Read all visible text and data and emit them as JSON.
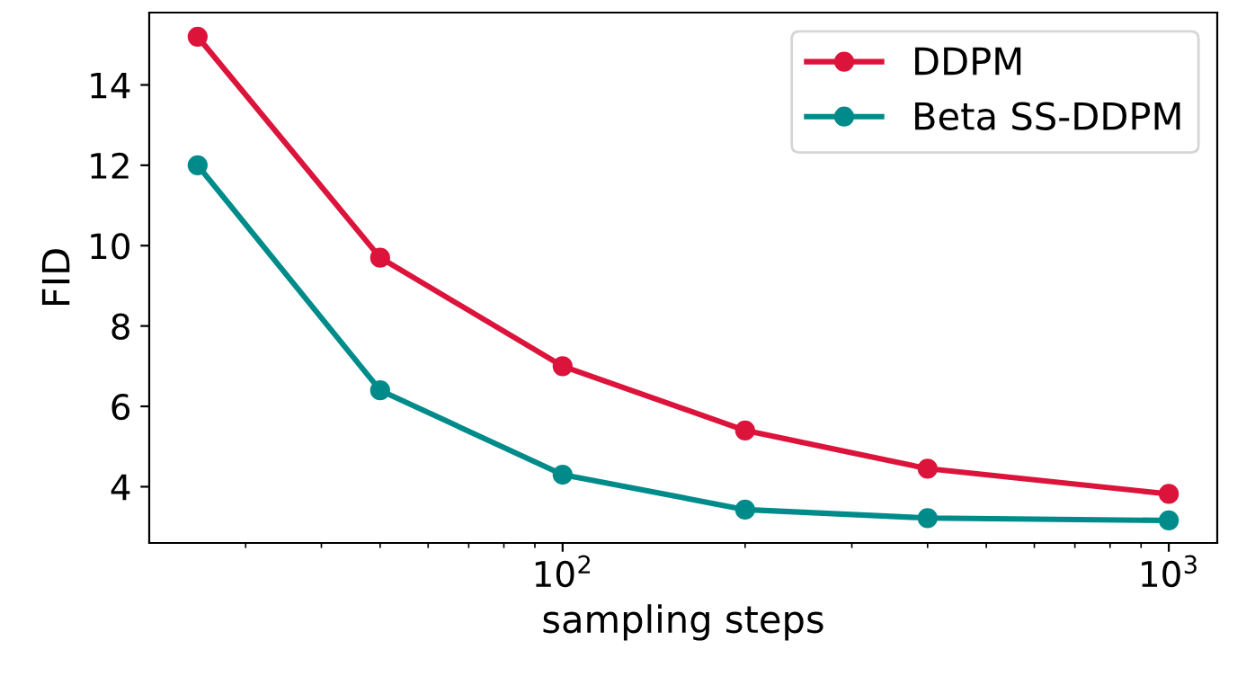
{
  "chart_data": {
    "type": "line",
    "xlabel": "sampling steps",
    "ylabel": "FID",
    "x": [
      25,
      50,
      100,
      200,
      400,
      1000
    ],
    "series": [
      {
        "name": "DDPM",
        "color": "#dc143c",
        "values": [
          15.2,
          9.7,
          7.0,
          5.4,
          4.45,
          3.82
        ]
      },
      {
        "name": "Beta SS-DDPM",
        "color": "#008b8b",
        "values": [
          12.0,
          6.4,
          4.3,
          3.43,
          3.22,
          3.16
        ]
      }
    ],
    "log": "x",
    "xlim": [
      20.8,
      1202
    ],
    "xticks": [
      {
        "value": 100,
        "label": "10$^{2}$"
      },
      {
        "value": 1000,
        "label": "10$^{3}$"
      }
    ],
    "ylim": [
      2.6,
      15.8
    ],
    "yticks": [
      4,
      6,
      8,
      10,
      12,
      14
    ],
    "grid": false,
    "legend": "top right",
    "marker": "circle",
    "line_style": "solid"
  }
}
